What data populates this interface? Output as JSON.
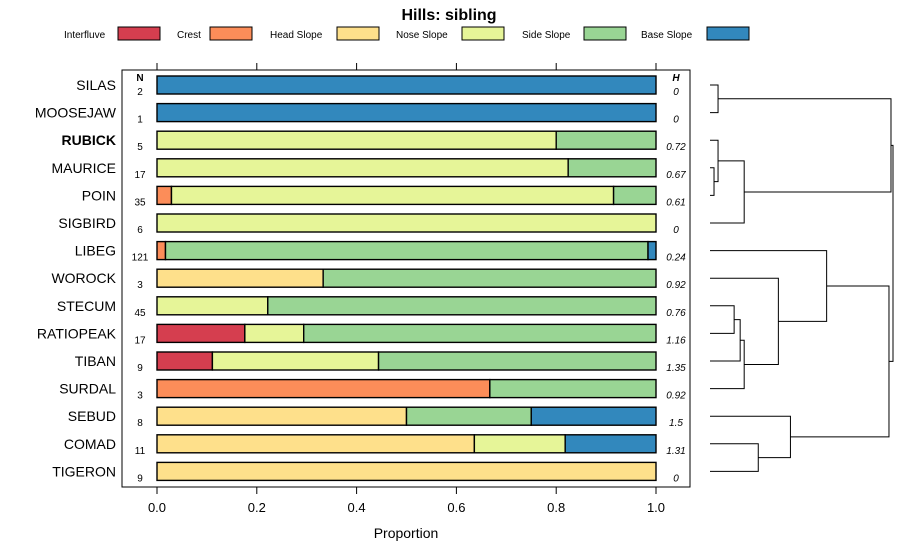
{
  "chart_data": {
    "type": "bar",
    "orientation": "horizontal",
    "stacked": true,
    "title": "Hills: sibling",
    "xlabel": "Proportion",
    "ylabel": "",
    "xlim": [
      0,
      1
    ],
    "x_ticks": [
      "0.0",
      "0.2",
      "0.4",
      "0.6",
      "0.8",
      "1.0"
    ],
    "x_tick_values": [
      0,
      0.2,
      0.4,
      0.6,
      0.8,
      1.0
    ],
    "n_header": "N",
    "h_header": "H",
    "legend": [
      {
        "name": "Interfluve",
        "color": "#d53e4f"
      },
      {
        "name": "Crest",
        "color": "#fc8d59"
      },
      {
        "name": "Head Slope",
        "color": "#fee08b"
      },
      {
        "name": "Nose Slope",
        "color": "#e6f598"
      },
      {
        "name": "Side Slope",
        "color": "#99d594"
      },
      {
        "name": "Base Slope",
        "color": "#3288bd"
      }
    ],
    "categories": [
      "SILAS",
      "MOOSEJAW",
      "RUBICK",
      "MAURICE",
      "POIN",
      "SIGBIRD",
      "LIBEG",
      "WOROCK",
      "STECUM",
      "RATIOPEAK",
      "TIBAN",
      "SURDAL",
      "SEBUD",
      "COMAD",
      "TIGERON"
    ],
    "highlight": "RUBICK",
    "n": [
      "2",
      "1",
      "5",
      "17",
      "35",
      "6",
      "121",
      "3",
      "45",
      "17",
      "9",
      "3",
      "8",
      "11",
      "9"
    ],
    "h": [
      "0",
      "0",
      "0.72",
      "0.67",
      "0.61",
      "0",
      "0.24",
      "0.92",
      "0.76",
      "1.16",
      "1.35",
      "0.92",
      "1.5",
      "1.31",
      "0"
    ],
    "series": [
      {
        "name": "Interfluve",
        "values": [
          0,
          0,
          0,
          0,
          0,
          0,
          0,
          0,
          0,
          0.176,
          0.111,
          0,
          0,
          0,
          0
        ]
      },
      {
        "name": "Crest",
        "values": [
          0,
          0,
          0,
          0,
          0.029,
          0,
          0.017,
          0,
          0,
          0,
          0,
          0.667,
          0,
          0,
          0
        ]
      },
      {
        "name": "Head Slope",
        "values": [
          0,
          0,
          0,
          0,
          0,
          0,
          0,
          0.333,
          0,
          0,
          0,
          0,
          0.5,
          0.636,
          1.0
        ]
      },
      {
        "name": "Nose Slope",
        "values": [
          0,
          0,
          0.8,
          0.824,
          0.886,
          1.0,
          0,
          0,
          0.222,
          0.118,
          0.333,
          0,
          0,
          0.182,
          0
        ]
      },
      {
        "name": "Side Slope",
        "values": [
          0,
          0,
          0.2,
          0.176,
          0.085,
          0,
          0.967,
          0.667,
          0.778,
          0.706,
          0.556,
          0.333,
          0.25,
          0,
          0
        ]
      },
      {
        "name": "Base Slope",
        "values": [
          1.0,
          1.0,
          0,
          0,
          0,
          0,
          0.016,
          0,
          0,
          0,
          0,
          0,
          0.25,
          0.182,
          0
        ]
      }
    ],
    "dendrogram": {
      "leaves": [
        "SILAS",
        "MOOSEJAW",
        "RUBICK",
        "MAURICE",
        "POIN",
        "SIGBIRD",
        "LIBEG",
        "WOROCK",
        "STECUM",
        "RATIOPEAK",
        "TIBAN",
        "SURDAL",
        "SEBUD",
        "COMAD",
        "TIGERON"
      ],
      "merges": [
        [
          0,
          1,
          0.04
        ],
        [
          3,
          4,
          0.02
        ],
        [
          2,
          16,
          0.04
        ],
        [
          5,
          17,
          0.17
        ],
        [
          15,
          18,
          0.9
        ],
        [
          8,
          9,
          0.12
        ],
        [
          20,
          10,
          0.15
        ],
        [
          11,
          21,
          0.17
        ],
        [
          7,
          22,
          0.34
        ],
        [
          6,
          23,
          0.58
        ],
        [
          13,
          14,
          0.24
        ],
        [
          12,
          25,
          0.4
        ],
        [
          24,
          26,
          0.89
        ],
        [
          19,
          27,
          0.91
        ]
      ]
    }
  }
}
